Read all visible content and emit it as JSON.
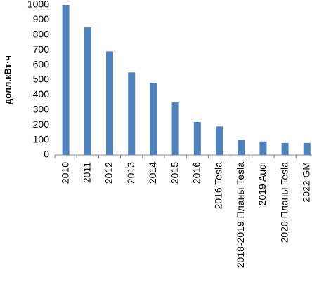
{
  "chart_data": {
    "type": "bar",
    "y_label": "долл.кВт·ч",
    "categories": [
      "2010",
      "2011",
      "2012",
      "2013",
      "2014",
      "2015",
      "2016",
      "2016 Tesla",
      "2018-2019 Планы Tesla",
      "2019 Audi",
      "2020 Планы Tesla",
      "2022 GM"
    ],
    "values": [
      1000,
      850,
      690,
      550,
      480,
      350,
      220,
      190,
      100,
      90,
      80,
      80
    ],
    "color": "#4f81bd",
    "ylim": [
      0,
      1000
    ],
    "yticks": [
      0,
      100,
      200,
      300,
      400,
      500,
      600,
      700,
      800,
      900,
      1000
    ],
    "grid": false
  }
}
